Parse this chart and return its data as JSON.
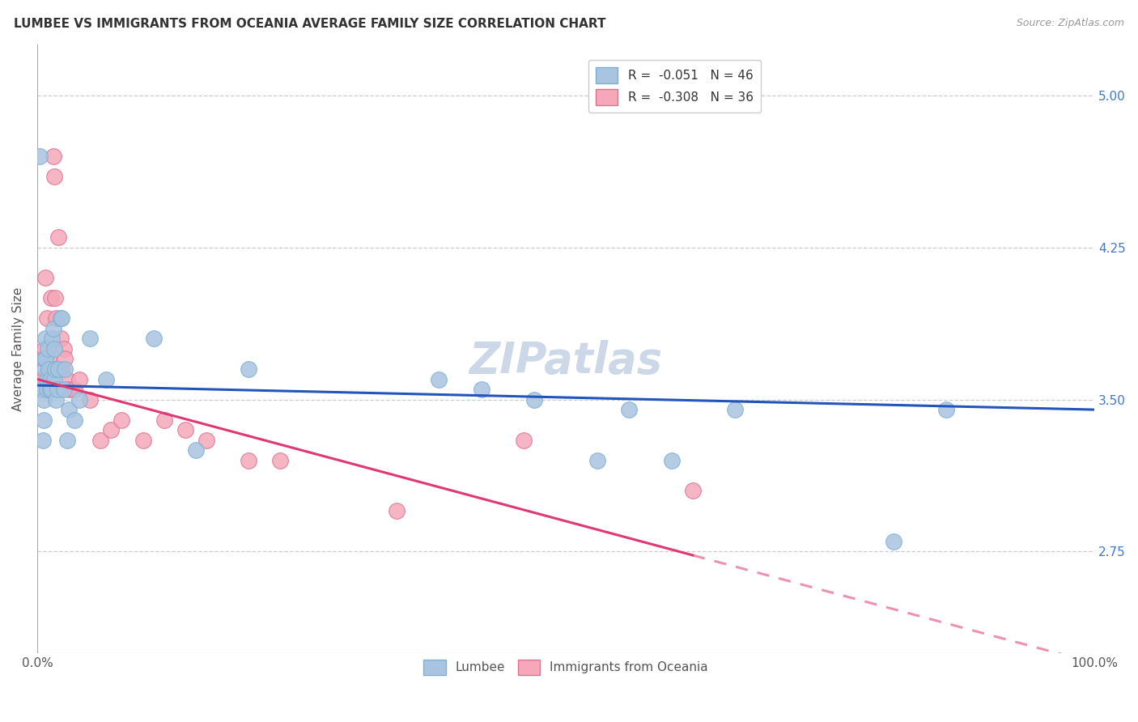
{
  "title": "LUMBEE VS IMMIGRANTS FROM OCEANIA AVERAGE FAMILY SIZE CORRELATION CHART",
  "source": "Source: ZipAtlas.com",
  "ylabel": "Average Family Size",
  "xlim": [
    0,
    1
  ],
  "ylim": [
    2.25,
    5.25
  ],
  "yticks": [
    2.75,
    3.5,
    4.25,
    5.0
  ],
  "xticks": [
    0.0,
    1.0
  ],
  "xticklabels": [
    "0.0%",
    "100.0%"
  ],
  "yticklabels": [
    "2.75",
    "3.50",
    "4.25",
    "5.00"
  ],
  "legend_label1": "R =  -0.051   N = 46",
  "legend_label2": "R =  -0.308   N = 36",
  "lumbee_color": "#a8c4e0",
  "oceania_color": "#f4a8b8",
  "lumbee_edge": "#7bafd4",
  "oceania_edge": "#e07090",
  "trend_lumbee_color": "#2255bb",
  "trend_oceania_color": "#e03870",
  "watermark_color": "#ccd8e8",
  "background_color": "#ffffff",
  "lumbee_x": [
    0.002,
    0.004,
    0.005,
    0.006,
    0.006,
    0.007,
    0.007,
    0.008,
    0.008,
    0.009,
    0.009,
    0.01,
    0.011,
    0.012,
    0.012,
    0.013,
    0.014,
    0.015,
    0.016,
    0.016,
    0.017,
    0.018,
    0.019,
    0.02,
    0.022,
    0.023,
    0.025,
    0.026,
    0.028,
    0.03,
    0.035,
    0.04,
    0.05,
    0.065,
    0.11,
    0.15,
    0.2,
    0.38,
    0.42,
    0.47,
    0.53,
    0.56,
    0.6,
    0.66,
    0.81,
    0.86
  ],
  "lumbee_y": [
    4.7,
    3.55,
    3.3,
    3.5,
    3.4,
    3.65,
    3.7,
    3.8,
    3.7,
    3.55,
    3.6,
    3.75,
    3.65,
    3.55,
    3.6,
    3.55,
    3.8,
    3.85,
    3.6,
    3.75,
    3.65,
    3.5,
    3.55,
    3.65,
    3.9,
    3.9,
    3.55,
    3.65,
    3.3,
    3.45,
    3.4,
    3.5,
    3.8,
    3.6,
    3.8,
    3.25,
    3.65,
    3.6,
    3.55,
    3.5,
    3.2,
    3.45,
    3.2,
    3.45,
    2.8,
    3.45
  ],
  "oceania_x": [
    0.003,
    0.004,
    0.005,
    0.006,
    0.007,
    0.008,
    0.009,
    0.01,
    0.011,
    0.013,
    0.015,
    0.016,
    0.017,
    0.018,
    0.02,
    0.022,
    0.023,
    0.025,
    0.026,
    0.028,
    0.03,
    0.035,
    0.04,
    0.05,
    0.06,
    0.07,
    0.08,
    0.1,
    0.12,
    0.14,
    0.16,
    0.2,
    0.23,
    0.34,
    0.46,
    0.62
  ],
  "oceania_y": [
    3.6,
    3.55,
    3.7,
    3.6,
    3.75,
    4.1,
    3.9,
    3.65,
    3.7,
    4.0,
    4.7,
    4.6,
    4.0,
    3.9,
    4.3,
    3.8,
    3.65,
    3.75,
    3.7,
    3.6,
    3.55,
    3.55,
    3.6,
    3.5,
    3.3,
    3.35,
    3.4,
    3.3,
    3.4,
    3.35,
    3.3,
    3.2,
    3.2,
    2.95,
    3.3,
    3.05
  ],
  "trend_lumbee_x0": 0.0,
  "trend_lumbee_y0": 3.57,
  "trend_lumbee_x1": 1.0,
  "trend_lumbee_y1": 3.45,
  "trend_oceania_x0": 0.0,
  "trend_oceania_y0": 3.6,
  "trend_oceania_x1": 1.0,
  "trend_oceania_y1": 2.2,
  "trend_oceania_solid_end": 0.62,
  "trend_oceania_dashed_start": 0.62
}
